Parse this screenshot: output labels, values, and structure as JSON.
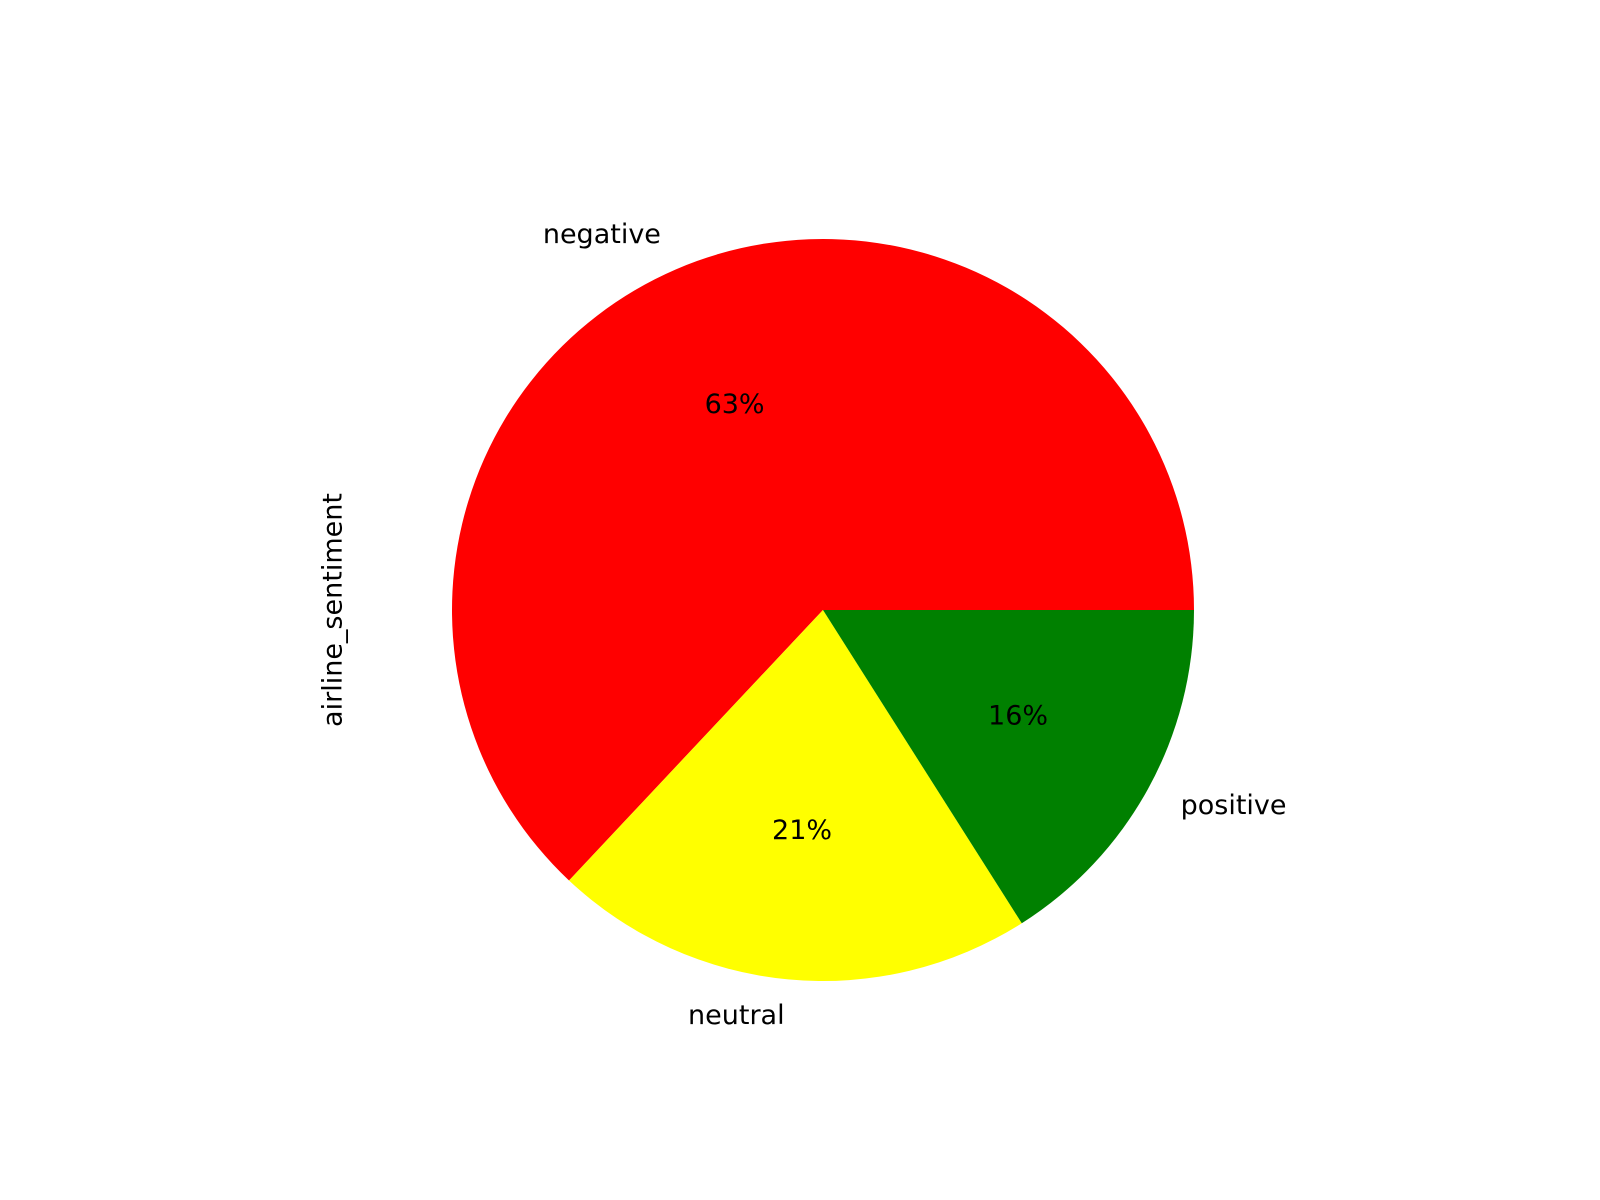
{
  "chart_data": {
    "type": "pie",
    "ylabel": "airline_sentiment",
    "slices": [
      {
        "label": "negative",
        "value": 63,
        "pct_label": "63%",
        "color": "#ff0000"
      },
      {
        "label": "neutral",
        "value": 21,
        "pct_label": "21%",
        "color": "#ffff00"
      },
      {
        "label": "positive",
        "value": 16,
        "pct_label": "16%",
        "color": "#008000"
      }
    ],
    "start_angle_deg": 0,
    "direction": "counterclockwise",
    "legend": "none"
  }
}
